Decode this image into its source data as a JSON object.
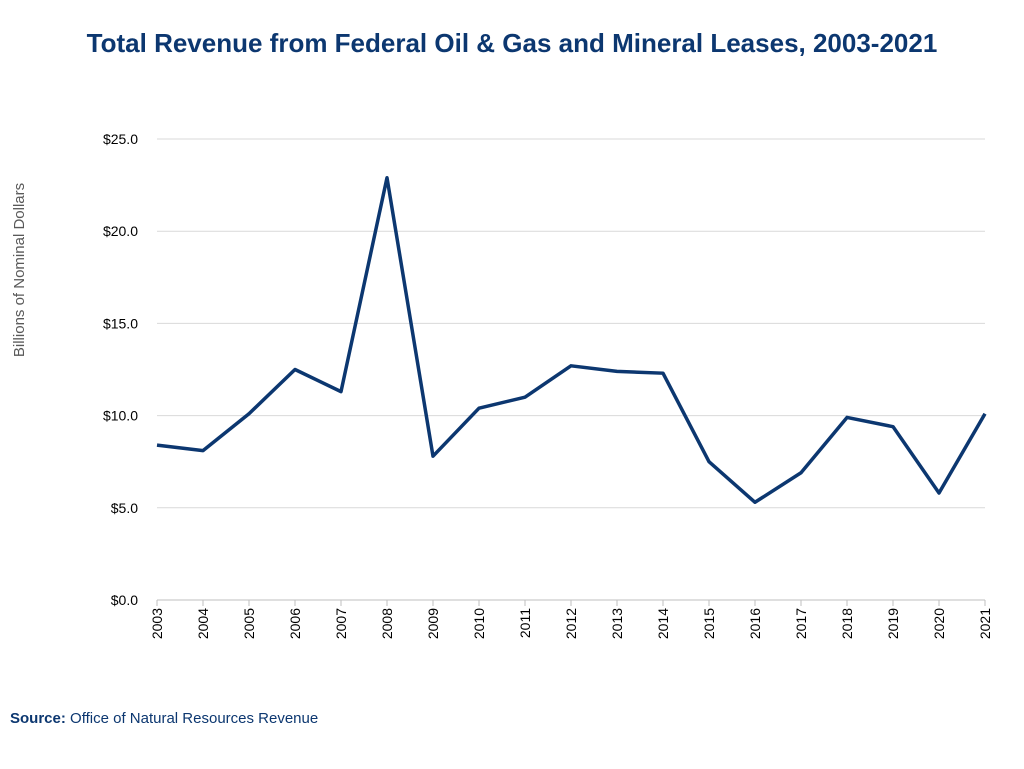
{
  "chart_data": {
    "type": "line",
    "title": "Total Revenue from Federal Oil & Gas and Mineral Leases, 2003-2021",
    "xlabel": "",
    "ylabel": "Billions of Nominal Dollars",
    "ylim": [
      0,
      25
    ],
    "yticks": [
      "$0.0",
      "$5.0",
      "$10.0",
      "$15.0",
      "$20.0",
      "$25.0"
    ],
    "grid": "horizontal",
    "categories": [
      "2003",
      "2004",
      "2005",
      "2006",
      "2007",
      "2008",
      "2009",
      "2010",
      "2011",
      "2012",
      "2013",
      "2014",
      "2015",
      "2016",
      "2017",
      "2018",
      "2019",
      "2020",
      "2021"
    ],
    "values": [
      8.4,
      8.1,
      10.1,
      12.5,
      11.3,
      22.9,
      7.8,
      10.4,
      11.0,
      12.7,
      12.4,
      12.3,
      7.5,
      5.3,
      6.9,
      9.9,
      9.4,
      5.8,
      10.1
    ],
    "line_color": "#0c3770"
  },
  "source": {
    "label": "Source:",
    "text": "Office of Natural Resources Revenue"
  }
}
